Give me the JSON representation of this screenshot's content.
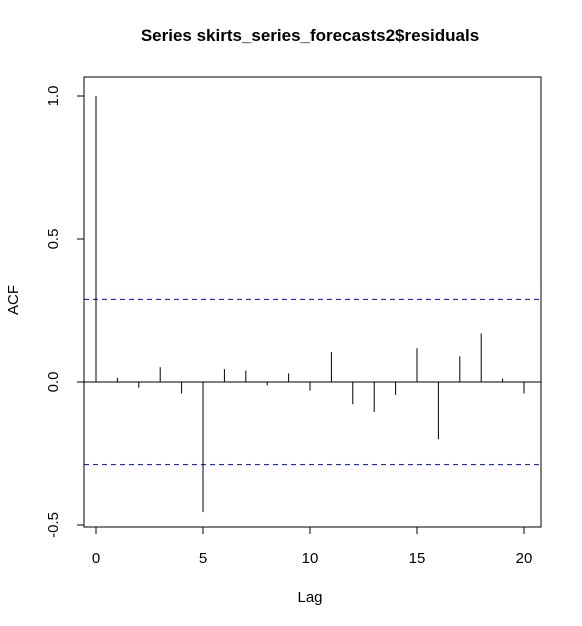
{
  "chart_data": {
    "type": "bar",
    "title": "Series  skirts_series_forecasts2$residuals",
    "xlabel": "Lag",
    "ylabel": "ACF",
    "xlim": [
      0,
      20
    ],
    "ylim": [
      -0.5,
      1.0
    ],
    "x_ticks": [
      0,
      5,
      10,
      15,
      20
    ],
    "x_tick_labels": [
      "0",
      "5",
      "10",
      "15",
      "20"
    ],
    "y_ticks": [
      -0.5,
      0.0,
      0.5,
      1.0
    ],
    "y_tick_labels": [
      "-0.5",
      "0.0",
      "0.5",
      "1.0"
    ],
    "lags": [
      0,
      1,
      2,
      3,
      4,
      5,
      6,
      7,
      8,
      9,
      10,
      11,
      12,
      13,
      14,
      15,
      16,
      17,
      18,
      19,
      20
    ],
    "values": [
      1.0,
      0.015,
      -0.02,
      0.052,
      -0.04,
      -0.455,
      0.045,
      0.04,
      -0.012,
      0.03,
      -0.03,
      0.105,
      -0.078,
      -0.105,
      -0.045,
      0.118,
      -0.2,
      0.09,
      0.17,
      0.012,
      -0.04
    ],
    "confidence_bound": 0.289,
    "colors": {
      "bars": "#000000",
      "confidence": "#0000ff",
      "zero_line": "#000000",
      "frame": "#000000"
    }
  }
}
